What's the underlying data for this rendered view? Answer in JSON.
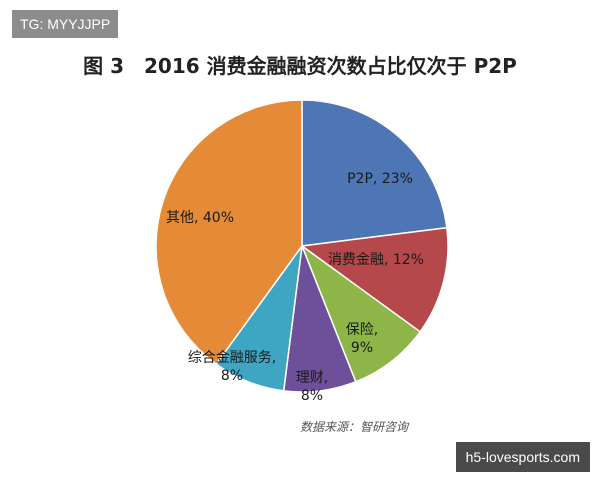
{
  "watermarks": {
    "top": "TG: MYYJJPP",
    "bottom": "h5-lovesports.com"
  },
  "chart_data": {
    "type": "pie",
    "title": "图 3　2016 消费金融融资次数占比仅次于 P2P",
    "source": "数据来源：智研咨询",
    "slices": [
      {
        "label": "P2P, 23%",
        "value": 23,
        "color": "#4f76b4"
      },
      {
        "label": "消费金融, 12%",
        "value": 12,
        "color": "#b5484a"
      },
      {
        "label": "保险, 9%",
        "value": 9,
        "color": "#8eb548"
      },
      {
        "label": "理财, 8%",
        "value": 8,
        "color": "#6e4f99"
      },
      {
        "label": "综合金融服务, 8%",
        "value": 8,
        "color": "#3ea5c3"
      },
      {
        "label": "其他, 40%",
        "value": 40,
        "color": "#e58a37"
      }
    ]
  }
}
